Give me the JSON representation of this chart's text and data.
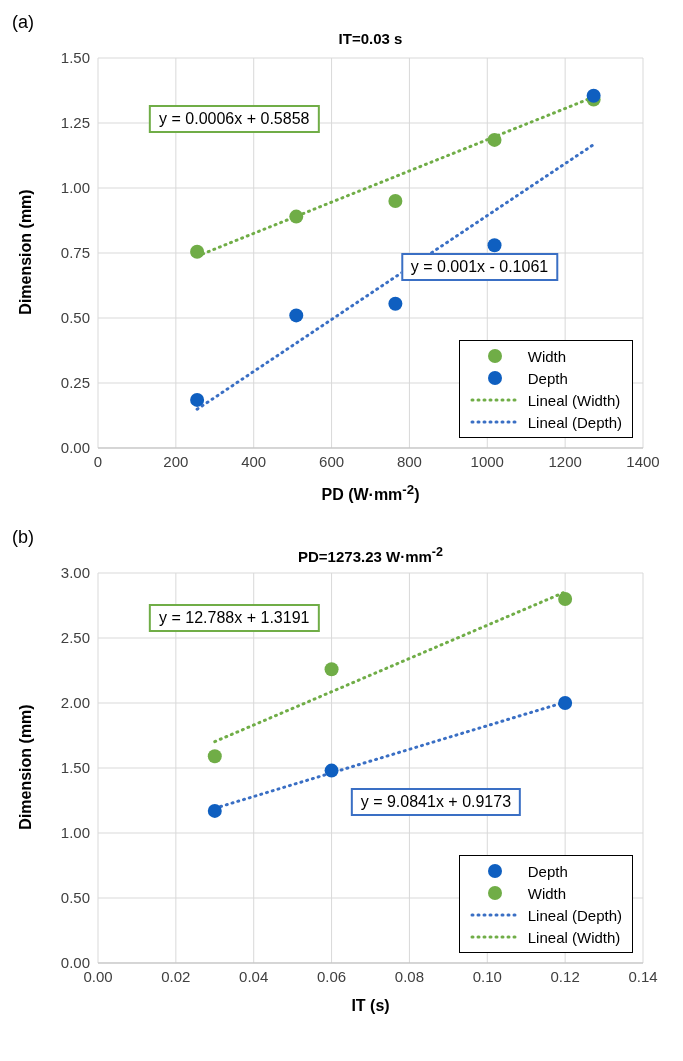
{
  "chart_data": [
    {
      "type": "scatter",
      "title": "IT=0.03 s",
      "xlabel": "PD (W·mm$^{-2}$)",
      "ylabel": "Dimension (mm)",
      "annotations": [
        "(a)",
        "y = 0.0006x + 0.5858",
        "y = 0.001x - 0.1061"
      ],
      "series": [
        {
          "name": "Width",
          "marker": "circle",
          "color": "#70ad47",
          "x": [
            254.6,
            509.3,
            763.9,
            1018.6,
            1273.2
          ],
          "values": [
            0.755,
            0.89,
            0.95,
            1.185,
            1.34
          ]
        },
        {
          "name": "Depth",
          "marker": "circle",
          "color": "#0f5fc0",
          "x": [
            254.6,
            509.3,
            763.9,
            1018.6,
            1273.2
          ],
          "values": [
            0.185,
            0.51,
            0.555,
            0.78,
            1.355
          ]
        },
        {
          "name": "Lineal (Width)",
          "type": "line",
          "line_style": "dotted",
          "color": "#70ad47",
          "x": [
            254.6,
            1273.2
          ],
          "values": [
            0.738,
            1.35
          ]
        },
        {
          "name": "Lineal (Depth)",
          "type": "line",
          "line_style": "dotted",
          "color": "#3a6fc4",
          "x": [
            254.6,
            1273.2
          ],
          "values": [
            0.149,
            1.167
          ]
        }
      ],
      "xlim": [
        0,
        1400
      ],
      "xticks": [
        0,
        200,
        400,
        600,
        800,
        1000,
        1200,
        1400
      ],
      "ylim": [
        0,
        1.5
      ],
      "yticks": [
        {
          "value": 0,
          "label": "0.00"
        },
        {
          "value": 0.25,
          "label": "0.25"
        },
        {
          "value": 0.5,
          "label": "0.50"
        },
        {
          "value": 0.75,
          "label": "0.75"
        },
        {
          "value": 1,
          "label": "1.00"
        },
        {
          "value": 1.25,
          "label": "1.25"
        },
        {
          "value": 1.5,
          "label": "1.50"
        }
      ],
      "grid": true,
      "legend": "bottom right"
    },
    {
      "type": "scatter",
      "title": "PD=1273.23 W·mm$^{-2}$",
      "xlabel": "IT (s)",
      "ylabel": "Dimension (mm)",
      "annotations": [
        "(b)",
        "y = 9.0841x + 0.9173",
        "y = 12.788x + 1.3191"
      ],
      "series": [
        {
          "name": "Depth",
          "marker": "circle",
          "color": "#0f5fc0",
          "x": [
            0.03,
            0.06,
            0.12
          ],
          "values": [
            1.17,
            1.48,
            2.0
          ]
        },
        {
          "name": "Width",
          "marker": "circle",
          "color": "#70ad47",
          "x": [
            0.03,
            0.06,
            0.12
          ],
          "values": [
            1.59,
            2.26,
            2.8
          ]
        },
        {
          "name": "Lineal (Depth)",
          "type": "line",
          "line_style": "dotted",
          "color": "#3a6fc4",
          "x": [
            0.03,
            0.12
          ],
          "values": [
            1.19,
            2.007
          ]
        },
        {
          "name": "Lineal (Width)",
          "type": "line",
          "line_style": "dotted",
          "color": "#70ad47",
          "x": [
            0.03,
            0.12
          ],
          "values": [
            1.703,
            2.854
          ]
        }
      ],
      "xlim": [
        0,
        0.14
      ],
      "xticks": [
        {
          "value": 0,
          "label": "0.00"
        },
        {
          "value": 0.02,
          "label": "0.02"
        },
        {
          "value": 0.04,
          "label": "0.04"
        },
        {
          "value": 0.06,
          "label": "0.06"
        },
        {
          "value": 0.08,
          "label": "0.08"
        },
        {
          "value": 0.1,
          "label": "0.10"
        },
        {
          "value": 0.12,
          "label": "0.12"
        },
        {
          "value": 0.14,
          "label": "0.14"
        }
      ],
      "ylim": [
        0,
        3
      ],
      "yticks": [
        {
          "value": 0,
          "label": "0.00"
        },
        {
          "value": 0.5,
          "label": "0.50"
        },
        {
          "value": 1,
          "label": "1.00"
        },
        {
          "value": 1.5,
          "label": "1.50"
        },
        {
          "value": 2,
          "label": "2.00"
        },
        {
          "value": 2.5,
          "label": "2.50"
        },
        {
          "value": 3,
          "label": "3.00"
        }
      ],
      "grid": true,
      "legend": "bottom right"
    }
  ]
}
